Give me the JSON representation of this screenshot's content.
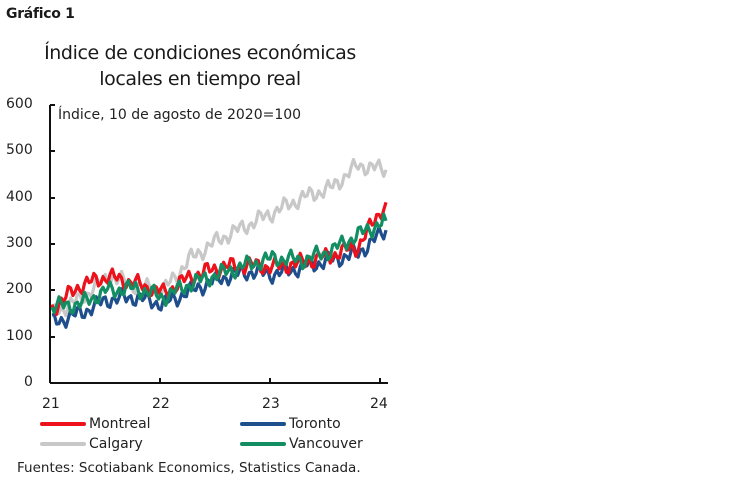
{
  "figure_label": "Gráfico 1",
  "title_line1": "Índice de condiciones económicas",
  "title_line2": "locales en tiempo real",
  "unit_label": "Índice, 10 de agosto de 2020=100",
  "source": "Fuentes: Scotiabank Economics, Statistics Canada.",
  "y_ticks": [
    "600",
    "500",
    "400",
    "300",
    "200",
    "100",
    "0"
  ],
  "x_ticks": [
    "21",
    "22",
    "23",
    "24"
  ],
  "legend": [
    {
      "label": "Montreal",
      "color": "#ec111a"
    },
    {
      "label": "Toronto",
      "color": "#1f4e8c"
    },
    {
      "label": "Calgary",
      "color": "#c8c8c8"
    },
    {
      "label": "Vancouver",
      "color": "#138d62"
    }
  ],
  "chart_data": {
    "type": "line",
    "title": "Índice de condiciones económicas locales en tiempo real",
    "subtitle": "Índice, 10 de agosto de 2020=100",
    "xlabel": "",
    "ylabel": "Índice, 10 de agosto de 2020=100",
    "ylim": [
      0,
      600
    ],
    "xlim": [
      "2021-01",
      "2024-01"
    ],
    "grid": false,
    "legend_position": "bottom",
    "x": [
      "2021-01",
      "2021-04",
      "2021-07",
      "2021-10",
      "2022-01",
      "2022-04",
      "2022-07",
      "2022-10",
      "2023-01",
      "2023-04",
      "2023-07",
      "2023-10",
      "2024-01"
    ],
    "series": [
      {
        "name": "Montreal",
        "color": "#ec111a",
        "values": [
          160,
          210,
          230,
          215,
          195,
          230,
          250,
          255,
          250,
          260,
          275,
          295,
          390
        ]
      },
      {
        "name": "Toronto",
        "color": "#1f4e8c",
        "values": [
          130,
          150,
          180,
          185,
          170,
          200,
          225,
          240,
          235,
          250,
          265,
          280,
          330
        ]
      },
      {
        "name": "Calgary",
        "color": "#c8c8c8",
        "values": [
          150,
          180,
          230,
          210,
          200,
          270,
          310,
          340,
          370,
          400,
          420,
          470,
          460
        ]
      },
      {
        "name": "Vancouver",
        "color": "#138d62",
        "values": [
          165,
          170,
          200,
          205,
          185,
          215,
          235,
          255,
          270,
          265,
          285,
          320,
          350
        ]
      }
    ]
  }
}
